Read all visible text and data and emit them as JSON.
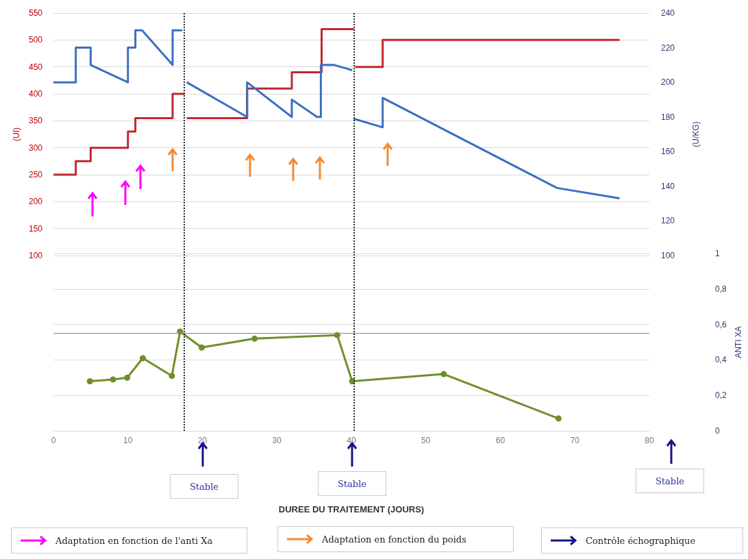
{
  "chart_data": [
    {
      "type": "line",
      "ylabel": "(UI)",
      "y2label": "(U/KG)",
      "xlim": [
        0,
        80
      ],
      "xticks": [
        0,
        10,
        20,
        30,
        40,
        50,
        60,
        70,
        80
      ],
      "ylim": [
        100,
        550
      ],
      "yticks": [
        100,
        150,
        200,
        250,
        300,
        350,
        400,
        450,
        500,
        550
      ],
      "y2lim": [
        100,
        240
      ],
      "y2ticks": [
        100,
        120,
        140,
        160,
        180,
        200,
        220,
        240
      ],
      "grid": "y",
      "tick_labels": "y",
      "marker": "none",
      "series": [
        {
          "type": "step",
          "color": "#c0282d",
          "x": [
            0,
            3,
            5,
            10,
            11,
            16,
            17.3,
            17.6,
            17.9,
            26,
            32,
            36,
            40.1,
            40.3,
            40.5,
            44.2,
            76
          ],
          "values": [
            250,
            275,
            300,
            330,
            355,
            400,
            400,
            null,
            355,
            410,
            440,
            520,
            520,
            null,
            450,
            500,
            500
          ]
        },
        {
          "type": "line",
          "color": "#3a6fc4",
          "axis": "y2",
          "x": [
            0,
            3,
            3,
            5,
            5,
            10,
            10,
            11,
            11,
            11.9,
            16,
            16,
            17.3,
            17.6,
            17.9,
            26,
            26,
            32,
            32,
            35.4,
            35.9,
            35.9,
            37.7,
            40.1,
            40.2,
            40.3,
            44.2,
            44.2,
            67.6,
            76
          ],
          "values": [
            200,
            200,
            220,
            220,
            210,
            200,
            220,
            220,
            230,
            230,
            210,
            230,
            230,
            null,
            200,
            180,
            200,
            180,
            190,
            180,
            180,
            210,
            210,
            207,
            null,
            179,
            174,
            191,
            139,
            133
          ]
        }
      ],
      "ref_lines": [
        {
          "axis": "x",
          "value": 17.5,
          "color": "#222222",
          "line_style": "dotted"
        },
        {
          "axis": "x",
          "value": 40.3,
          "color": "#222222",
          "line_style": "dotted"
        }
      ]
    },
    {
      "type": "line",
      "xlabel": "DUREE DU TRAITEMENT (JOURS)",
      "y2label": "ANTI XA",
      "xlim": [
        0,
        80
      ],
      "xticks": [
        0,
        10,
        20,
        30,
        40,
        50,
        60,
        70,
        80
      ],
      "y2lim": [
        0,
        1
      ],
      "y2ticks": [
        0,
        {
          "value": 0.2,
          "label": "0,2"
        },
        {
          "value": 0.4,
          "label": "0,4"
        },
        {
          "value": 0.6,
          "label": "0,6"
        },
        {
          "value": 0.8,
          "label": "0,8"
        },
        1
      ],
      "grid": "y",
      "marker": "circle",
      "series": [
        {
          "type": "line",
          "color": "#6f8f2a",
          "axis": "y2",
          "x": [
            4.9,
            8,
            9.9,
            12,
            15.9,
            17,
            19.9,
            27,
            38.1,
            40.1,
            52.4,
            67.8
          ],
          "values": [
            0.28,
            0.29,
            0.3,
            0.41,
            0.31,
            0.56,
            0.47,
            0.52,
            0.54,
            0.28,
            0.32,
            0.07
          ]
        }
      ],
      "ref_lines": [
        {
          "axis": "x",
          "value": 17.5,
          "color": "#222222",
          "line_style": "dotted"
        },
        {
          "axis": "x",
          "value": 40.3,
          "color": "#222222",
          "line_style": "dotted"
        },
        {
          "axis": "y2",
          "value": 0.55,
          "color": "#888888",
          "line_style": "solid"
        }
      ],
      "annotations": [
        "Stable",
        "Stable",
        "Stable",
        "Adaptation en fonction de l'anti Xa",
        "Adaptation en fonction du poids",
        "Contrôle échographique"
      ]
    }
  ]
}
